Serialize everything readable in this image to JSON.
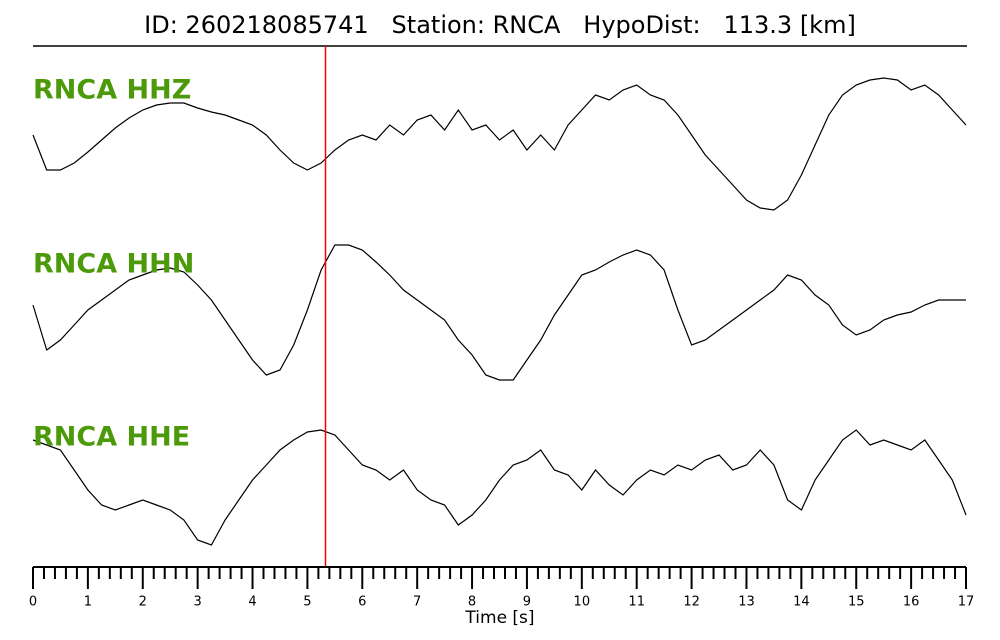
{
  "chart_data": {
    "type": "line",
    "title": "ID: 260218085741   Station: RNCA   HypoDist:   113.3 [km]",
    "xlabel": "Time [s]",
    "xlim": [
      0,
      17
    ],
    "xticks": [
      0,
      1,
      2,
      3,
      4,
      5,
      6,
      7,
      8,
      9,
      10,
      11,
      12,
      13,
      14,
      15,
      16,
      17
    ],
    "minor_per_major": 5,
    "pick_time": 5.33,
    "pick_color": "#ff0000",
    "label_color": "#4c9a0a",
    "x": [
      0,
      0.25,
      0.5,
      0.75,
      1,
      1.25,
      1.5,
      1.75,
      2,
      2.25,
      2.5,
      2.75,
      3,
      3.25,
      3.5,
      3.75,
      4,
      4.25,
      4.5,
      4.75,
      5,
      5.25,
      5.5,
      5.75,
      6,
      6.25,
      6.5,
      6.75,
      7,
      7.25,
      7.5,
      7.75,
      8,
      8.25,
      8.5,
      8.75,
      9,
      9.25,
      9.5,
      9.75,
      10,
      10.25,
      10.5,
      10.75,
      11,
      11.25,
      11.5,
      11.75,
      12,
      12.25,
      12.5,
      12.75,
      13,
      13.25,
      13.5,
      13.75,
      14,
      14.25,
      14.5,
      14.75,
      15,
      15.25,
      15.5,
      15.75,
      16,
      16.25,
      16.5,
      16.75,
      17
    ],
    "series": [
      {
        "name": "RNCA HHZ",
        "color": "#000000",
        "values": [
          10,
          -25,
          -25,
          -18,
          -7,
          5,
          17,
          27,
          35,
          40,
          42,
          42,
          37,
          33,
          30,
          25,
          20,
          10,
          -5,
          -18,
          -25,
          -18,
          -5,
          5,
          10,
          5,
          20,
          10,
          25,
          30,
          15,
          35,
          15,
          20,
          5,
          15,
          -5,
          10,
          -5,
          20,
          35,
          50,
          45,
          55,
          60,
          50,
          45,
          30,
          10,
          -10,
          -25,
          -40,
          -55,
          -63,
          -65,
          -55,
          -30,
          0,
          30,
          50,
          60,
          65,
          67,
          65,
          55,
          60,
          50,
          35,
          20
        ]
      },
      {
        "name": "RNCA HHN",
        "color": "#000000",
        "values": [
          10,
          -35,
          -25,
          -10,
          5,
          15,
          25,
          35,
          40,
          45,
          47,
          43,
          30,
          15,
          -5,
          -25,
          -45,
          -60,
          -55,
          -30,
          5,
          45,
          70,
          70,
          65,
          53,
          40,
          25,
          15,
          5,
          -5,
          -25,
          -40,
          -60,
          -65,
          -65,
          -45,
          -25,
          0,
          20,
          40,
          45,
          53,
          60,
          65,
          60,
          45,
          5,
          -30,
          -25,
          -15,
          -5,
          5,
          15,
          25,
          40,
          35,
          20,
          10,
          -10,
          -20,
          -15,
          -5,
          0,
          3,
          10,
          15,
          15,
          15
        ]
      },
      {
        "name": "RNCA HHE",
        "color": "#000000",
        "values": [
          47,
          42,
          37,
          17,
          -3,
          -18,
          -23,
          -18,
          -13,
          -18,
          -23,
          -33,
          -53,
          -58,
          -33,
          -13,
          7,
          22,
          37,
          47,
          55,
          57,
          52,
          37,
          22,
          17,
          7,
          17,
          -3,
          -13,
          -18,
          -38,
          -28,
          -13,
          7,
          22,
          27,
          37,
          17,
          12,
          -3,
          17,
          2,
          -8,
          7,
          17,
          12,
          22,
          17,
          27,
          32,
          17,
          22,
          37,
          22,
          -13,
          -23,
          7,
          27,
          47,
          57,
          42,
          47,
          42,
          37,
          47,
          27,
          7,
          -28
        ]
      }
    ]
  }
}
